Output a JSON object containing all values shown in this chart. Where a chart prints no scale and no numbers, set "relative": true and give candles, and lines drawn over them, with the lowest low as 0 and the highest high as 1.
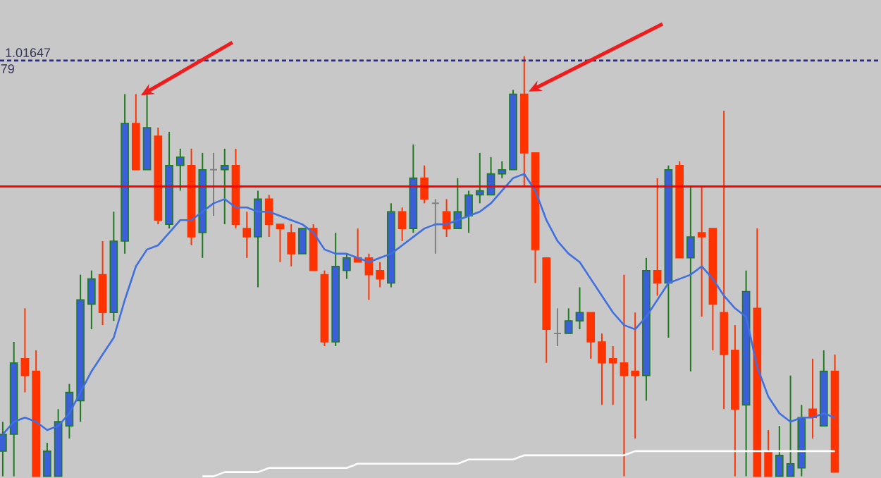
{
  "chart_data": {
    "type": "candlestick",
    "relative": true,
    "categories": [
      null,
      null,
      null,
      null,
      null,
      null,
      null,
      null,
      null,
      null,
      null,
      null,
      null,
      null,
      null,
      null,
      null,
      null,
      null,
      null,
      null,
      null,
      null,
      null,
      null,
      null,
      null,
      null,
      null,
      null,
      null,
      null,
      null,
      null,
      null,
      null,
      null,
      null,
      null,
      null,
      null,
      null,
      null,
      null,
      null,
      null,
      null,
      null,
      null,
      null,
      null,
      null,
      null,
      null,
      null,
      null,
      null,
      null,
      null,
      null,
      null,
      null,
      null,
      null,
      null,
      null,
      null,
      null,
      null,
      null,
      null,
      null,
      null,
      null,
      null,
      null
    ],
    "ohlc": [
      [
        0.06,
        0.13,
        0,
        0.1
      ],
      [
        0.1,
        0.32,
        0,
        0.27
      ],
      [
        0.28,
        0.4,
        0.2,
        0.24
      ],
      [
        0.25,
        0.3,
        0,
        0
      ],
      [
        0,
        0.08,
        0,
        0.06
      ],
      [
        0,
        0.16,
        0,
        0.13
      ],
      [
        0.12,
        0.22,
        0.09,
        0.2
      ],
      [
        0.18,
        0.48,
        0.13,
        0.42
      ],
      [
        0.41,
        0.49,
        0.35,
        0.47
      ],
      [
        0.48,
        0.56,
        0.36,
        0.39
      ],
      [
        0.39,
        0.63,
        0.37,
        0.56
      ],
      [
        0.56,
        0.91,
        0.53,
        0.84
      ],
      [
        0.84,
        0.91,
        0.73,
        0.73
      ],
      [
        0.73,
        0.91,
        0.73,
        0.83
      ],
      [
        0.81,
        0.83,
        0.6,
        0.61
      ],
      [
        0.6,
        0.82,
        0.59,
        0.74
      ],
      [
        0.74,
        0.78,
        0.68,
        0.76
      ],
      [
        0.74,
        0.78,
        0.55,
        0.57
      ],
      [
        0.58,
        0.77,
        0.52,
        0.73
      ],
      [
        0.73,
        0.77,
        0.62,
        0.73
      ],
      [
        0.73,
        0.78,
        0.6,
        0.74
      ],
      [
        0.74,
        0.78,
        0.59,
        0.6
      ],
      [
        0.59,
        0.63,
        0.52,
        0.57
      ],
      [
        0.57,
        0.68,
        0.45,
        0.66
      ],
      [
        0.66,
        0.67,
        0.57,
        0.6
      ],
      [
        0.6,
        0.6,
        0.51,
        0.59
      ],
      [
        0.58,
        0.6,
        0.5,
        0.53
      ],
      [
        0.53,
        0.59,
        0.53,
        0.59
      ],
      [
        0.59,
        0.6,
        0.49,
        0.49
      ],
      [
        0.48,
        0.49,
        0.31,
        0.32
      ],
      [
        0.32,
        0.58,
        0.31,
        0.5
      ],
      [
        0.49,
        0.53,
        0.47,
        0.52
      ],
      [
        0.52,
        0.59,
        0.51,
        0.51
      ],
      [
        0.52,
        0.53,
        0.42,
        0.48
      ],
      [
        0.49,
        0.51,
        0.45,
        0.47
      ],
      [
        0.46,
        0.65,
        0.45,
        0.63
      ],
      [
        0.63,
        0.64,
        0.56,
        0.59
      ],
      [
        0.59,
        0.79,
        0.58,
        0.71
      ],
      [
        0.71,
        0.74,
        0.65,
        0.66
      ],
      [
        0.65,
        0.66,
        0.53,
        0.65
      ],
      [
        0.63,
        0.66,
        0.57,
        0.59
      ],
      [
        0.59,
        0.71,
        0.59,
        0.63
      ],
      [
        0.62,
        0.68,
        0.58,
        0.67
      ],
      [
        0.67,
        0.77,
        0.65,
        0.68
      ],
      [
        0.67,
        0.76,
        0.67,
        0.72
      ],
      [
        0.72,
        0.75,
        0.71,
        0.73
      ],
      [
        0.73,
        0.92,
        0.73,
        0.91
      ],
      [
        0.91,
        1,
        0.69,
        0.77
      ],
      [
        0.77,
        0.77,
        0.46,
        0.54
      ],
      [
        0.52,
        0.52,
        0.27,
        0.35
      ],
      [
        0.34,
        0.4,
        0.31,
        0.34
      ],
      [
        0.34,
        0.4,
        0.34,
        0.37
      ],
      [
        0.37,
        0.45,
        0.35,
        0.39
      ],
      [
        0.39,
        0.39,
        0.28,
        0.32
      ],
      [
        0.32,
        0.34,
        0.17,
        0.27
      ],
      [
        0.28,
        0.31,
        0.17,
        0.27
      ],
      [
        0.27,
        0.48,
        0,
        0.24
      ],
      [
        0.25,
        0.39,
        0.09,
        0.24
      ],
      [
        0.24,
        0.52,
        0.18,
        0.49
      ],
      [
        0.49,
        0.71,
        0.43,
        0.46
      ],
      [
        0.46,
        0.74,
        0.33,
        0.73
      ],
      [
        0.74,
        0.75,
        0.52,
        0.52
      ],
      [
        0.52,
        0.69,
        0.25,
        0.57
      ],
      [
        0.58,
        0.69,
        0.38,
        0.57
      ],
      [
        0.59,
        0.59,
        0.3,
        0.41
      ],
      [
        0.39,
        0.87,
        0.16,
        0.29
      ],
      [
        0.3,
        0.36,
        0,
        0.16
      ],
      [
        0.17,
        0.49,
        0,
        0.44
      ],
      [
        0.4,
        0.59,
        0,
        0
      ],
      [
        0.06,
        0.11,
        0,
        0
      ],
      [
        0,
        0.12,
        0,
        0.05
      ],
      [
        0,
        0.24,
        0,
        0.03
      ],
      [
        0.02,
        0.17,
        0,
        0.14
      ],
      [
        0.16,
        0.28,
        0.09,
        0.14
      ],
      [
        0.12,
        0.3,
        0.12,
        0.25
      ],
      [
        0.25,
        0.29,
        0.01,
        0.01
      ]
    ],
    "colors": [
      "#3a5fd8",
      "#3a5fd8",
      "#ff3300",
      "#ff3300",
      "#3a5fd8",
      "#3a5fd8",
      "#3a5fd8",
      "#3a5fd8",
      "#3a5fd8",
      "#ff3300",
      "#3a5fd8",
      "#3a5fd8",
      "#ff3300",
      "#3a5fd8",
      "#ff3300",
      "#3a5fd8",
      "#3a5fd8",
      "#ff3300",
      "#3a5fd8",
      "#808080",
      "#3a5fd8",
      "#ff3300",
      "#ff3300",
      "#3a5fd8",
      "#ff3300",
      "#ff3300",
      "#ff3300",
      "#3a5fd8",
      "#ff3300",
      "#ff3300",
      "#3a5fd8",
      "#3a5fd8",
      "#ff3300",
      "#ff3300",
      "#ff3300",
      "#3a5fd8",
      "#ff3300",
      "#3a5fd8",
      "#ff3300",
      "#808080",
      "#ff3300",
      "#3a5fd8",
      "#3a5fd8",
      "#3a5fd8",
      "#3a5fd8",
      "#3a5fd8",
      "#3a5fd8",
      "#ff3300",
      "#ff3300",
      "#ff3300",
      "#808080",
      "#3a5fd8",
      "#3a5fd8",
      "#ff3300",
      "#ff3300",
      "#ff3300",
      "#ff3300",
      "#ff3300",
      "#3a5fd8",
      "#ff3300",
      "#3a5fd8",
      "#ff3300",
      "#3a5fd8",
      "#ff3300",
      "#ff3300",
      "#ff3300",
      "#ff3300",
      "#3a5fd8",
      "#ff3300",
      "#ff3300",
      "#3a5fd8",
      "#3a5fd8",
      "#3a5fd8",
      "#ff3300",
      "#3a5fd8",
      "#ff3300"
    ],
    "series": [
      {
        "type": "line",
        "color": "#3f6fe0",
        "values": [
          0.1,
          0.13,
          0.14,
          0.13,
          0.11,
          0.12,
          0.15,
          0.2,
          0.25,
          0.29,
          0.33,
          0.42,
          0.5,
          0.54,
          0.55,
          0.58,
          0.61,
          0.61,
          0.63,
          0.65,
          0.66,
          0.64,
          0.64,
          0.63,
          0.63,
          0.62,
          0.61,
          0.6,
          0.58,
          0.54,
          0.53,
          0.53,
          0.52,
          0.51,
          0.52,
          0.53,
          0.55,
          0.57,
          0.59,
          0.6,
          0.6,
          0.61,
          0.62,
          0.63,
          0.65,
          0.68,
          0.71,
          0.72,
          0.68,
          0.61,
          0.56,
          0.53,
          0.51,
          0.47,
          0.43,
          0.39,
          0.36,
          0.35,
          0.38,
          0.42,
          0.46,
          0.47,
          0.48,
          0.5,
          0.47,
          0.43,
          0.4,
          0.38,
          0.26,
          0.19,
          0.15,
          0.13,
          0.14,
          0.14,
          0.15,
          0.14
        ]
      },
      {
        "type": "line",
        "color": "#ffffff",
        "values": [
          null,
          null,
          null,
          null,
          null,
          null,
          null,
          null,
          null,
          null,
          null,
          null,
          null,
          null,
          null,
          null,
          null,
          null,
          0,
          0,
          0.01,
          0.01,
          0.01,
          0.01,
          0.02,
          0.02,
          0.02,
          0.02,
          0.02,
          0.02,
          0.02,
          0.02,
          0.03,
          0.03,
          0.03,
          0.03,
          0.03,
          0.03,
          0.03,
          0.03,
          0.03,
          0.03,
          0.04,
          0.04,
          0.04,
          0.04,
          0.04,
          0.05,
          0.05,
          0.05,
          0.05,
          0.05,
          0.05,
          0.05,
          0.05,
          0.05,
          0.05,
          0.06,
          0.06,
          0.06,
          0.06,
          0.06,
          0.06,
          0.06,
          0.06,
          0.06,
          0.06,
          0.06,
          0.06,
          0.06,
          0.06,
          0.06,
          0.06,
          0.06,
          0.06,
          0.06
        ]
      }
    ],
    "ref_lines": [
      {
        "axis": "y",
        "value": 0.69,
        "color": "#ff0000",
        "line_style": "solid"
      },
      {
        "axis": "y",
        "value": 0.99,
        "color": "#2a2a7a",
        "line_style": "dashed"
      }
    ],
    "annotations": [
      "1.01647",
      "79"
    ]
  }
}
